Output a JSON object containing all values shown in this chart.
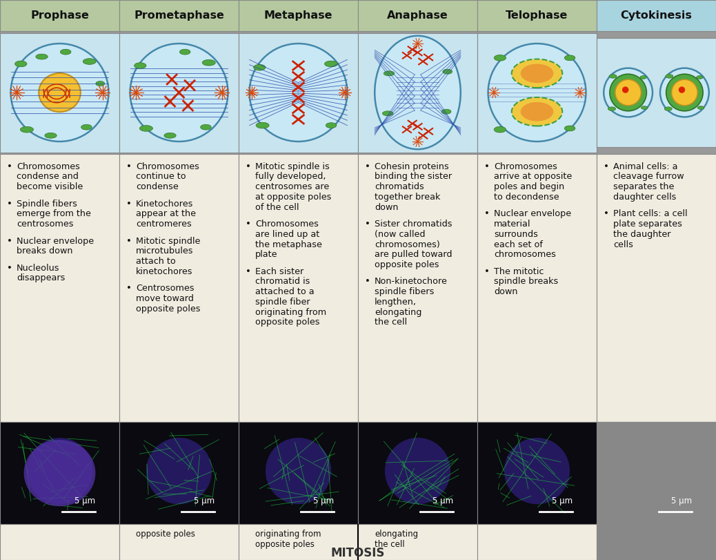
{
  "headers": [
    "Prophase",
    "Prometaphase",
    "Metaphase",
    "Anaphase",
    "Telophase",
    "Cytokinesis"
  ],
  "header_bg_colors": [
    "#b5c8a0",
    "#b5c8a0",
    "#b5c8a0",
    "#b5c8a0",
    "#b5c8a0",
    "#a8d4e0"
  ],
  "cell_bg_color": "#f0ece0",
  "illus_bg_color": "#c8e4ee",
  "border_color": "#888888",
  "text_color": "#111111",
  "figure_bg": "#999999",
  "scale_labels": [
    "5 μm",
    "5 μm",
    "5 μm",
    "5 μm",
    "5 μm",
    "5 μm"
  ],
  "bullet_points": [
    [
      "Chromosomes\ncondense and\nbecome visible",
      "Spindle fibers\nemerge from the\ncentrosomes",
      "Nuclear envelope\nbreaks down",
      "Nucleolus\ndisappears"
    ],
    [
      "Chromosomes\ncontinue to\ncondense",
      "Kinetochores\nappear at the\ncentromeres",
      "Mitotic spindle\nmicrotubules\nattach to\nkinetochores",
      "Centrosomes\nmove toward\nopposite poles"
    ],
    [
      "Mitotic spindle is\nfully developed,\ncentrosomes are\nat opposite poles\nof the cell",
      "Chromosomes\nare lined up at\nthe metaphase\nplate",
      "Each sister\nchromatid is\nattached to a\nspindle fiber\noriginating from\nopposite poles"
    ],
    [
      "Cohesin proteins\nbinding the sister\nchromatids\ntogether break\ndown",
      "Sister chromatids\n(now called\nchromosomes)\nare pulled toward\nopposite poles",
      "Non-kinetochore\nspindle fibers\nlengthen,\nelongating\nthe cell"
    ],
    [
      "Chromosomes\narrive at opposite\npoles and begin\nto decondense",
      "Nuclear envelope\nmaterial\nsurrounds\neach set of\nchromosomes",
      "The mitotic\nspindle breaks\ndown"
    ],
    [
      "Animal cells: a\ncleavage furrow\nseparates the\ndaughter cells",
      "Plant cells: a cell\nplate separates\nthe daughter\ncells"
    ]
  ],
  "bottom_text": [
    "",
    "opposite poles",
    "originating from\nopposite poles",
    "elongating\nthe cell",
    "",
    ""
  ],
  "bottom_center_text": "MITOSIS"
}
